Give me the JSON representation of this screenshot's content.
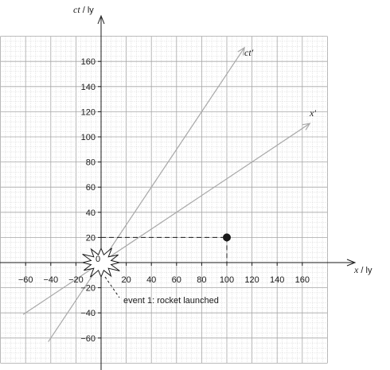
{
  "diagram": {
    "x_axis": {
      "symbol": "x",
      "unit": "ly",
      "range": [
        -60,
        160
      ],
      "ticks": [
        -60,
        -40,
        -20,
        20,
        40,
        60,
        80,
        100,
        120,
        140,
        160
      ]
    },
    "y_axis": {
      "symbol": "ct",
      "unit": "ly",
      "range": [
        -60,
        160
      ],
      "ticks": [
        160,
        140,
        120,
        100,
        80,
        60,
        40,
        20,
        -20,
        -40,
        -60
      ]
    },
    "origin_label": "0",
    "grid": {
      "minor_step": 4,
      "major_step": 20
    },
    "moving_frame": {
      "time_axis": {
        "label": "ct′",
        "slope": 1.5
      },
      "space_axis": {
        "label": "x′",
        "slope": 0.6667
      }
    },
    "event_point": {
      "x": 100,
      "ct": 20
    },
    "event_1": {
      "text": "event 1: rocket launched"
    },
    "colors": {
      "grid_minor": "#d4d4d4",
      "grid_major": "#a6a6a6",
      "axis": "#1a1a1a",
      "frame_axis": "#a8a8a8",
      "point": "#1a1a1a"
    }
  }
}
